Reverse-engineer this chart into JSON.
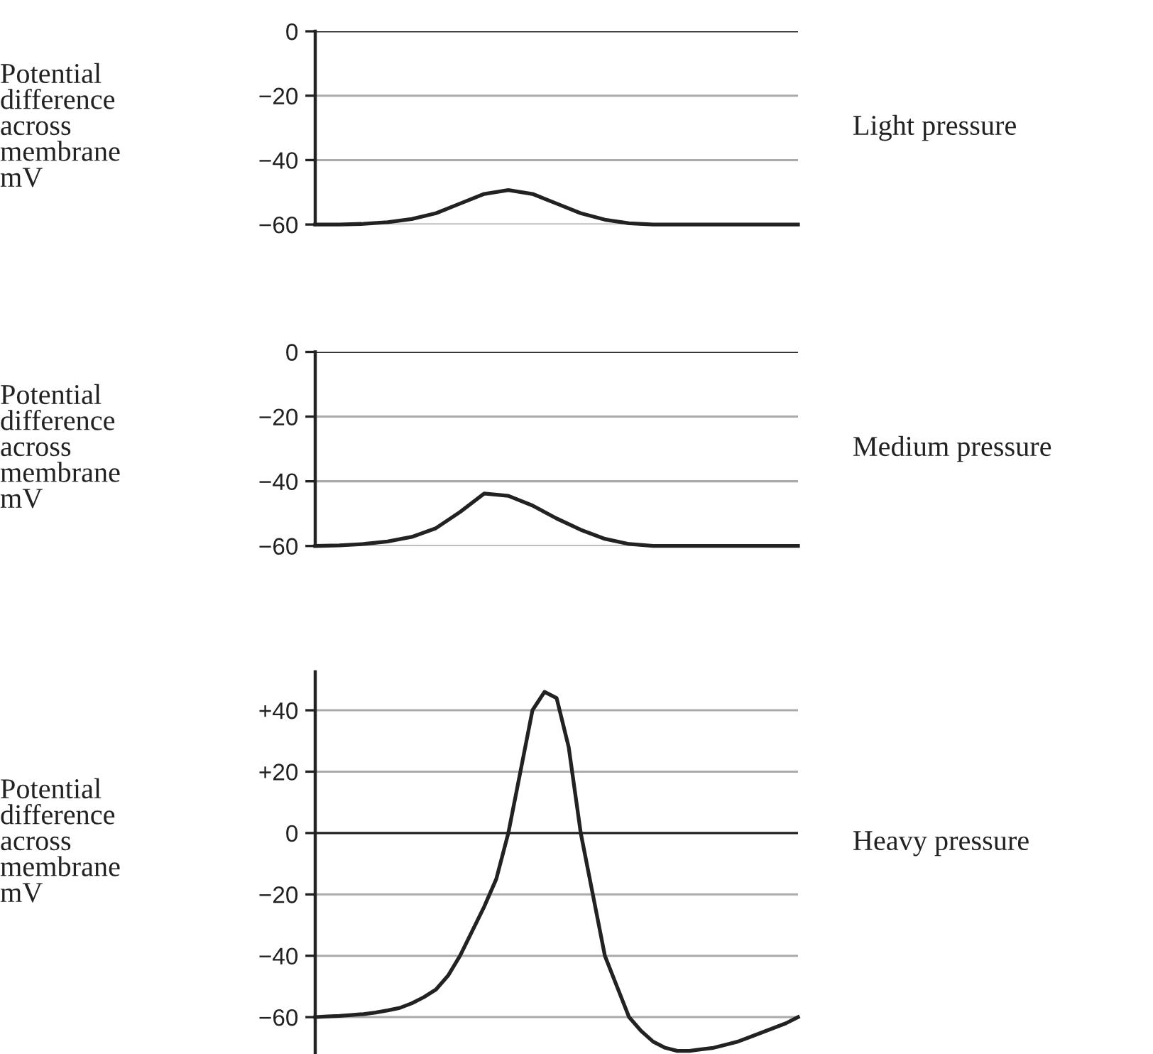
{
  "chart_data": [
    {
      "type": "line",
      "ylabel": "Potential\ndifference\nacross\nmembrane\nmV",
      "categories": [
        null,
        null,
        null,
        null,
        null,
        null,
        null,
        null,
        null,
        null,
        null,
        null,
        null,
        null,
        null,
        null,
        null,
        null,
        null,
        null,
        null
      ],
      "series": [
        {
          "name": "Light pressure",
          "color": "#222222",
          "values": [
            -60,
            -60,
            -59.8,
            -59.3,
            -58.3,
            -56.5,
            -53.5,
            -50.5,
            -49.3,
            -50.5,
            -53.5,
            -56.5,
            -58.5,
            -59.6,
            -60,
            -60,
            -60,
            -60,
            -60,
            -60,
            -60
          ]
        }
      ],
      "ylim": [
        -60,
        0
      ],
      "yticks": [
        {
          "value": 0,
          "label": "0"
        },
        {
          "value": -20,
          "label": "−20"
        },
        {
          "value": -40,
          "label": "−40"
        },
        {
          "value": -60,
          "label": "−60"
        }
      ],
      "grid": "y",
      "tick_labels": "y",
      "marker": "none",
      "line_style": "solid"
    },
    {
      "type": "line",
      "ylabel": "Potential\ndifference\nacross\nmembrane\nmV",
      "categories": [
        null,
        null,
        null,
        null,
        null,
        null,
        null,
        null,
        null,
        null,
        null,
        null,
        null,
        null,
        null,
        null,
        null,
        null,
        null,
        null,
        null
      ],
      "series": [
        {
          "name": "Medium pressure",
          "color": "#222222",
          "values": [
            -60,
            -59.8,
            -59.4,
            -58.6,
            -57.2,
            -54.5,
            -49.5,
            -43.8,
            -44.5,
            -47.5,
            -51.5,
            -55,
            -57.8,
            -59.4,
            -60,
            -60,
            -60,
            -60,
            -60,
            -60,
            -60
          ]
        }
      ],
      "ylim": [
        -60,
        0
      ],
      "yticks": [
        {
          "value": 0,
          "label": "0"
        },
        {
          "value": -20,
          "label": "−20"
        },
        {
          "value": -40,
          "label": "−40"
        },
        {
          "value": -60,
          "label": "−60"
        }
      ],
      "grid": "y",
      "tick_labels": "y",
      "marker": "none",
      "line_style": "solid"
    },
    {
      "type": "line",
      "ylabel": "Potential\ndifference\nacross\nmembrane\nmV",
      "categories": [
        null,
        null,
        null,
        null,
        null,
        null,
        null,
        null,
        null,
        null,
        null,
        null,
        null,
        null,
        null,
        null,
        null,
        null,
        null,
        null,
        null,
        null,
        null,
        null,
        null,
        null,
        null,
        null,
        null,
        null,
        null,
        null,
        null,
        null,
        null,
        null,
        null,
        null,
        null,
        null,
        null
      ],
      "series": [
        {
          "name": "Heavy pressure",
          "color": "#222222",
          "values": [
            -60,
            -59.8,
            -59.6,
            -59.3,
            -59,
            -58.5,
            -57.8,
            -57,
            -55.5,
            -53.5,
            -51,
            -46.5,
            -40,
            -32,
            -24,
            -15,
            0,
            20,
            40,
            46,
            44,
            28,
            0,
            -20,
            -40,
            -50,
            -60,
            -64.5,
            -68,
            -70,
            -71,
            -71,
            -70.5,
            -70,
            -69,
            -68,
            -66.5,
            -65,
            -63.5,
            -62,
            -60
          ]
        }
      ],
      "ylim": [
        -71.5,
        52.5
      ],
      "yticks": [
        {
          "value": 40,
          "label": "+40"
        },
        {
          "value": 20,
          "label": "+20"
        },
        {
          "value": 0,
          "label": "0"
        },
        {
          "value": -20,
          "label": "−20"
        },
        {
          "value": -40,
          "label": "−40"
        },
        {
          "value": -60,
          "label": "−60"
        }
      ],
      "grid": "y",
      "tick_labels": "y",
      "marker": "none",
      "line_style": "solid"
    }
  ]
}
